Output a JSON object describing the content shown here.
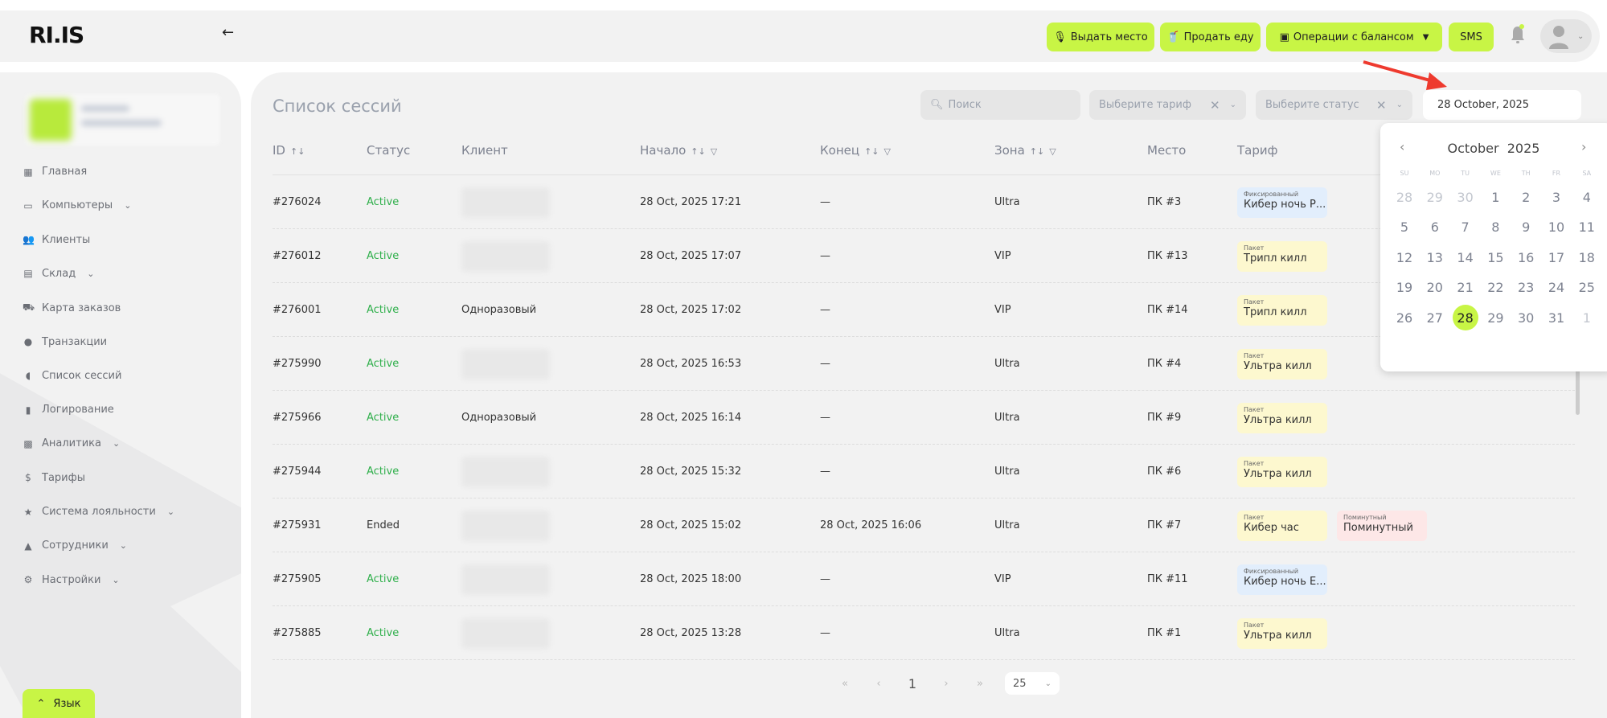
{
  "header": {
    "logo": "RI.IS",
    "back_icon": "arrow-left-icon",
    "buttons": [
      {
        "label": "Выдать место",
        "icon": "chair-icon"
      },
      {
        "label": "Продать еду",
        "icon": "food-icon"
      },
      {
        "label": "Операции с балансом",
        "icon": "wallet-icon"
      },
      {
        "label": "SMS"
      }
    ],
    "accent": "#c8f545"
  },
  "sidebar": {
    "items": [
      {
        "label": "Главная",
        "icon": "▦",
        "chev": false
      },
      {
        "label": "Компьютеры",
        "icon": "▭",
        "chev": true
      },
      {
        "label": "Клиенты",
        "icon": "👥",
        "chev": false
      },
      {
        "label": "Склад",
        "icon": "▤",
        "chev": true
      },
      {
        "label": "Карта заказов",
        "icon": "⛟",
        "chev": false
      },
      {
        "label": "Транзакции",
        "icon": "●",
        "chev": false
      },
      {
        "label": "Список сессий",
        "icon": "◖",
        "chev": false
      },
      {
        "label": "Логирование",
        "icon": "▮",
        "chev": false
      },
      {
        "label": "Аналитика",
        "icon": "▩",
        "chev": true
      },
      {
        "label": "Тарифы",
        "icon": "$",
        "chev": false
      },
      {
        "label": "Система лояльности",
        "icon": "★",
        "chev": true
      },
      {
        "label": "Сотрудники",
        "icon": "▲",
        "chev": true
      },
      {
        "label": "Настройки",
        "icon": "⚙",
        "chev": true
      }
    ],
    "language_label": "Язык"
  },
  "main": {
    "title": "Список сессий",
    "search_placeholder": "Поиск",
    "tariff_placeholder": "Выберите тариф",
    "status_placeholder": "Выберите статус",
    "date_value": "28 October, 2025",
    "columns": [
      "ID",
      "Статус",
      "Клиент",
      "Начало",
      "Конец",
      "Зона",
      "Место",
      "Тариф"
    ],
    "rows": [
      {
        "id": "#276024",
        "status": "Active",
        "client": null,
        "start": "28 Oct, 2025 17:21",
        "end": "—",
        "zone": "Ultra",
        "place": "ПК #3",
        "tariffs": [
          {
            "type": "Фиксированный",
            "name": "Кибер ночь Р...",
            "color": "blue"
          }
        ]
      },
      {
        "id": "#276012",
        "status": "Active",
        "client": null,
        "start": "28 Oct, 2025 17:07",
        "end": "—",
        "zone": "VIP",
        "place": "ПК #13",
        "tariffs": [
          {
            "type": "Пакет",
            "name": "Трипл килл",
            "color": "yellow"
          }
        ]
      },
      {
        "id": "#276001",
        "status": "Active",
        "client": "Одноразовый",
        "start": "28 Oct, 2025 17:02",
        "end": "—",
        "zone": "VIP",
        "place": "ПК #14",
        "tariffs": [
          {
            "type": "Пакет",
            "name": "Трипл килл",
            "color": "yellow"
          }
        ]
      },
      {
        "id": "#275990",
        "status": "Active",
        "client": null,
        "start": "28 Oct, 2025 16:53",
        "end": "—",
        "zone": "Ultra",
        "place": "ПК #4",
        "tariffs": [
          {
            "type": "Пакет",
            "name": "Ультра килл",
            "color": "yellow"
          }
        ]
      },
      {
        "id": "#275966",
        "status": "Active",
        "client": "Одноразовый",
        "start": "28 Oct, 2025 16:14",
        "end": "—",
        "zone": "Ultra",
        "place": "ПК #9",
        "tariffs": [
          {
            "type": "Пакет",
            "name": "Ультра килл",
            "color": "yellow"
          }
        ]
      },
      {
        "id": "#275944",
        "status": "Active",
        "client": null,
        "start": "28 Oct, 2025 15:32",
        "end": "—",
        "zone": "Ultra",
        "place": "ПК #6",
        "tariffs": [
          {
            "type": "Пакет",
            "name": "Ультра килл",
            "color": "yellow"
          }
        ]
      },
      {
        "id": "#275931",
        "status": "Ended",
        "client": null,
        "start": "28 Oct, 2025 15:02",
        "end": "28 Oct, 2025 16:06",
        "zone": "Ultra",
        "place": "ПК #7",
        "tariffs": [
          {
            "type": "Пакет",
            "name": "Кибер час",
            "color": "yellow"
          },
          {
            "type": "Поминутный",
            "name": "Поминутный",
            "color": "pink"
          }
        ]
      },
      {
        "id": "#275905",
        "status": "Active",
        "client": null,
        "start": "28 Oct, 2025 18:00",
        "end": "—",
        "zone": "VIP",
        "place": "ПК #11",
        "tariffs": [
          {
            "type": "Фиксированный",
            "name": "Кибер ночь Е...",
            "color": "blue"
          }
        ]
      },
      {
        "id": "#275885",
        "status": "Active",
        "client": null,
        "start": "28 Oct, 2025 13:28",
        "end": "—",
        "zone": "Ultra",
        "place": "ПК #1",
        "tariffs": [
          {
            "type": "Пакет",
            "name": "Ультра килл",
            "color": "yellow"
          }
        ]
      }
    ],
    "pagination": {
      "first": "«",
      "prev": "‹",
      "page": "1",
      "next": "›",
      "last": "»",
      "per_page": "25"
    }
  },
  "calendar": {
    "month": "October",
    "year": "2025",
    "weekdays": [
      "SU",
      "MO",
      "TU",
      "WE",
      "TH",
      "FR",
      "SA"
    ],
    "days": [
      [
        "28",
        "29",
        "30",
        "1",
        "2",
        "3",
        "4"
      ],
      [
        "5",
        "6",
        "7",
        "8",
        "9",
        "10",
        "11"
      ],
      [
        "12",
        "13",
        "14",
        "15",
        "16",
        "17",
        "18"
      ],
      [
        "19",
        "20",
        "21",
        "22",
        "23",
        "24",
        "25"
      ],
      [
        "26",
        "27",
        "28",
        "29",
        "30",
        "31",
        "1"
      ]
    ],
    "selected": "28"
  }
}
